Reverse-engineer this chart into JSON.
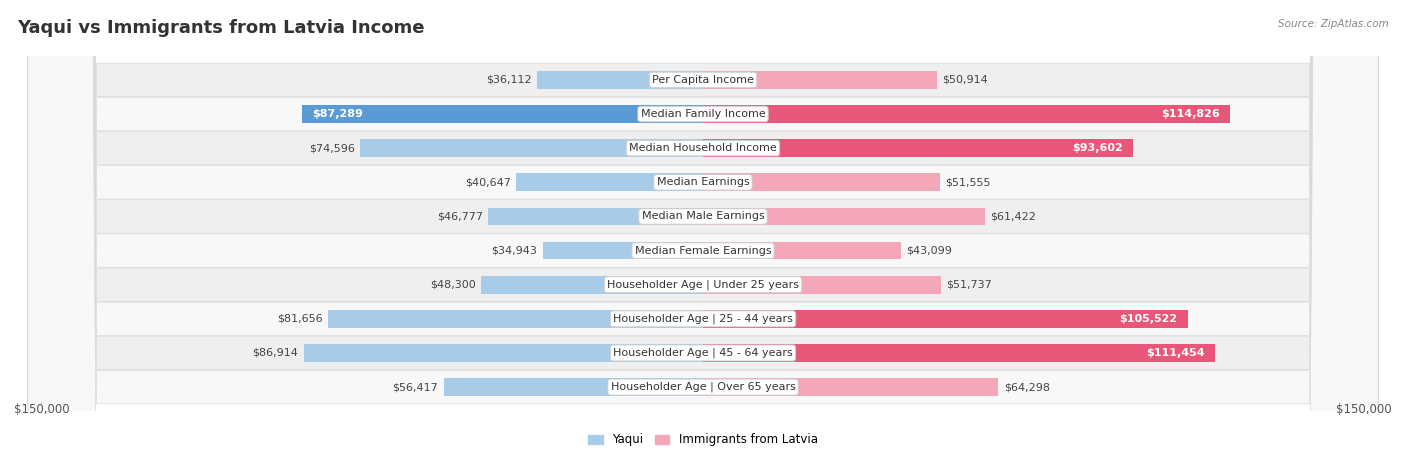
{
  "title": "Yaqui vs Immigrants from Latvia Income",
  "source": "Source: ZipAtlas.com",
  "categories": [
    "Per Capita Income",
    "Median Family Income",
    "Median Household Income",
    "Median Earnings",
    "Median Male Earnings",
    "Median Female Earnings",
    "Householder Age | Under 25 years",
    "Householder Age | 25 - 44 years",
    "Householder Age | 45 - 64 years",
    "Householder Age | Over 65 years"
  ],
  "yaqui_values": [
    36112,
    87289,
    74596,
    40647,
    46777,
    34943,
    48300,
    81656,
    86914,
    56417
  ],
  "latvia_values": [
    50914,
    114826,
    93602,
    51555,
    61422,
    43099,
    51737,
    105522,
    111454,
    64298
  ],
  "yaqui_labels": [
    "$36,112",
    "$87,289",
    "$74,596",
    "$40,647",
    "$46,777",
    "$34,943",
    "$48,300",
    "$81,656",
    "$86,914",
    "$56,417"
  ],
  "latvia_labels": [
    "$50,914",
    "$114,826",
    "$93,602",
    "$51,555",
    "$61,422",
    "$43,099",
    "$51,737",
    "$105,522",
    "$111,454",
    "$64,298"
  ],
  "yaqui_color_light": "#a8cce8",
  "yaqui_color_dark": "#5b9bd5",
  "latvia_color_light": "#f4a7b9",
  "latvia_color_dark": "#e8567a",
  "high_threshold": 0.58,
  "max_value": 150000,
  "bar_height": 0.52,
  "legend_yaqui": "Yaqui",
  "legend_latvia": "Immigrants from Latvia",
  "xlabel_left": "$150,000",
  "xlabel_right": "$150,000",
  "title_fontsize": 13,
  "label_fontsize": 8.5,
  "category_fontsize": 8,
  "value_label_fontsize": 8
}
